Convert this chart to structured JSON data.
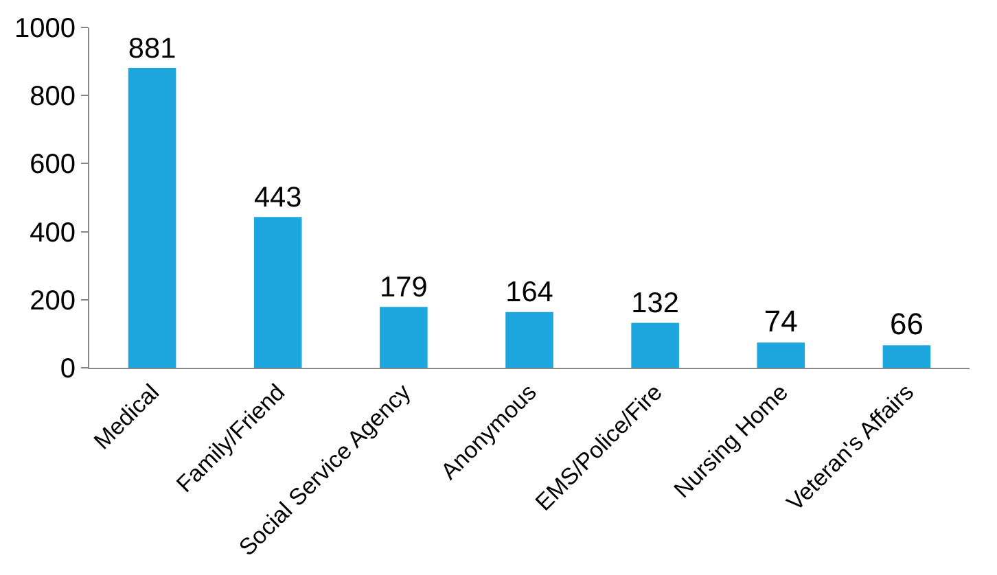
{
  "chart_data": {
    "type": "bar",
    "categories": [
      "Medical",
      "Family/Friend",
      "Social Service Agency",
      "Anonymous",
      "EMS/Police/Fire",
      "Nursing Home",
      "Veteran's Affairs"
    ],
    "values": [
      881,
      443,
      179,
      164,
      132,
      74,
      66
    ],
    "color": "#1ea6de",
    "ylim": [
      0,
      1000
    ],
    "yticks": [
      0,
      200,
      400,
      600,
      800,
      1000
    ],
    "data_labels": true
  }
}
